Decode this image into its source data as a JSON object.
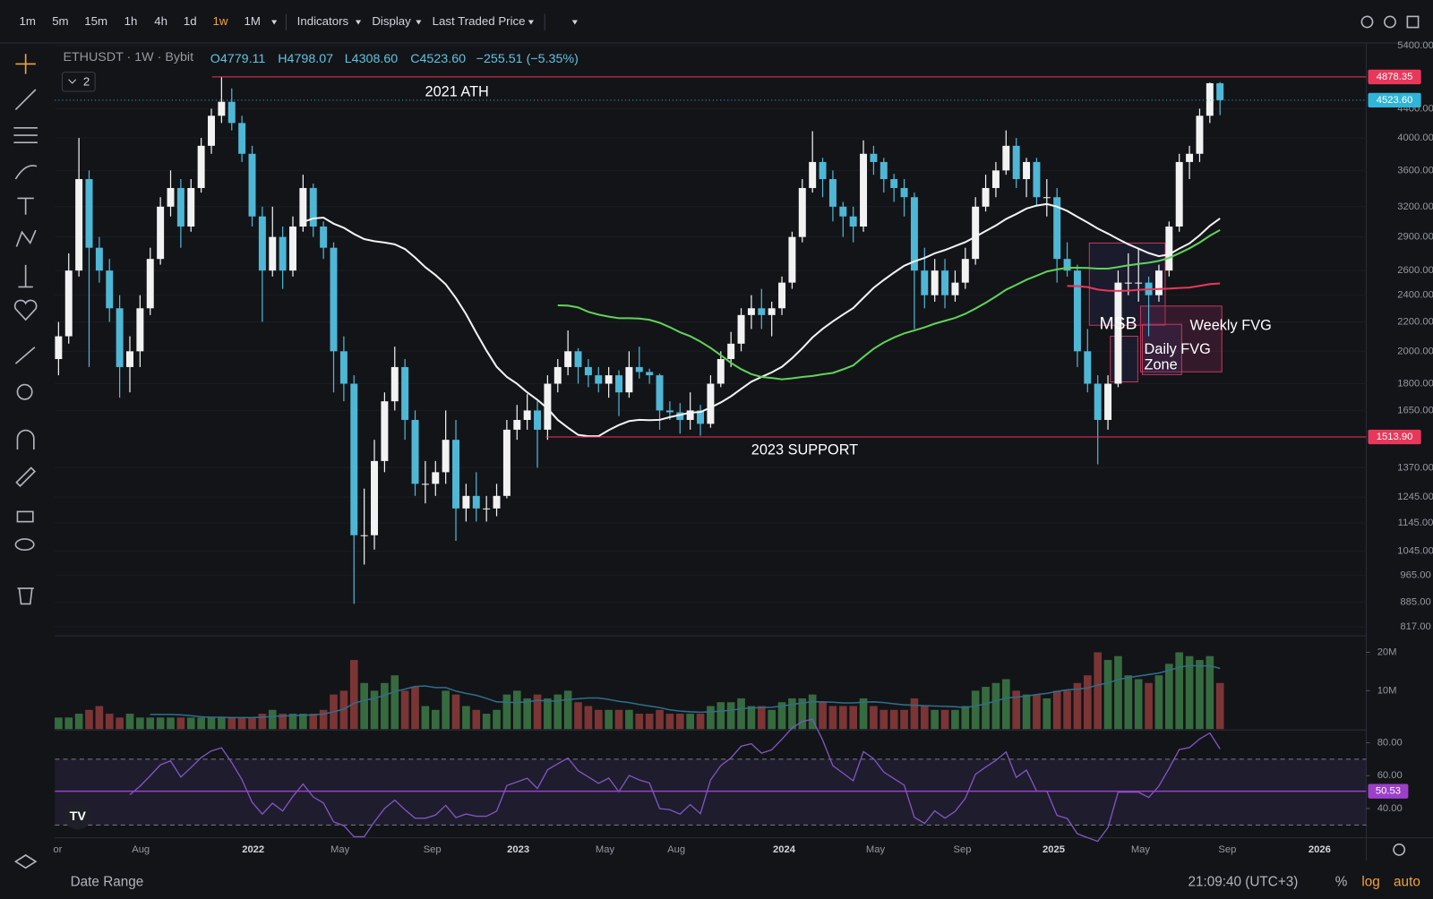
{
  "toolbar": {
    "timeframes": [
      "1m",
      "5m",
      "15m",
      "1h",
      "4h",
      "1d",
      "1w",
      "1M"
    ],
    "menus": [
      "Indicators",
      "Display",
      "Last Traded Price"
    ]
  },
  "header": {
    "symbol": "ETHUSDT · 1W · Bybit",
    "open": "O4779.11",
    "high": "H4798.07",
    "low": "L4308.60",
    "close": "C4523.60",
    "change": "−255.51 (−5.35%)",
    "badge": "2"
  },
  "footer": {
    "date_range": "Date Range",
    "clock": "21:09:40 (UTC+3)",
    "percent": "%",
    "log": "log",
    "auto": "auto"
  },
  "chart_data": {
    "type": "candlestick",
    "log": true,
    "up_color": "#f2f2f2",
    "down_color": "#4fb7d6",
    "ylim": [
      797.8,
      5464.5
    ],
    "yticks": [
      {
        "value": 5400,
        "label": "5400.00"
      },
      {
        "value": 4400,
        "label": "4400.00"
      },
      {
        "value": 4000,
        "label": "4000.00"
      },
      {
        "value": 3600,
        "label": "3600.00"
      },
      {
        "value": 3200,
        "label": "3200.00"
      },
      {
        "value": 2900,
        "label": "2900.00"
      },
      {
        "value": 2600,
        "label": "2600.00"
      },
      {
        "value": 2400,
        "label": "2400.00"
      },
      {
        "value": 2200,
        "label": "2200.00"
      },
      {
        "value": 2000,
        "label": "2000.00"
      },
      {
        "value": 1800,
        "label": "1800.00"
      },
      {
        "value": 1650,
        "label": "1650.00"
      },
      {
        "value": 1370,
        "label": "1370.00"
      },
      {
        "value": 1245,
        "label": "1245.00"
      },
      {
        "value": 1145,
        "label": "1145.00"
      },
      {
        "value": 1045,
        "label": "1045.00"
      },
      {
        "value": 965,
        "label": "965.00"
      },
      {
        "value": 885,
        "label": "885.00"
      },
      {
        "value": 817,
        "label": "817.00"
      }
    ],
    "xlabels": [
      "or",
      "Aug",
      "2022",
      "May",
      "Sep",
      "2023",
      "May",
      "Aug",
      "2024",
      "May",
      "Sep",
      "2025",
      "May",
      "Sep",
      "2026"
    ],
    "price_lines": [
      {
        "value": 4878.35,
        "color": "#e8385a"
      },
      {
        "value": 4523.6,
        "label": "4523.60",
        "color": "#2fb5d8"
      },
      {
        "value": 1513.9,
        "label": "1513.90",
        "color": "#e8385a"
      }
    ],
    "annotations": [
      "2021 ATH",
      "2023 SUPPORT",
      "MSB",
      "Weekly FVG",
      "Daily FVG",
      "Zone"
    ],
    "candles": [
      [
        1950,
        2200,
        1850,
        2100
      ],
      [
        2100,
        2750,
        2050,
        2600
      ],
      [
        2600,
        4000,
        2550,
        3500
      ],
      [
        3500,
        3600,
        1900,
        2800
      ],
      [
        2800,
        2900,
        2500,
        2600
      ],
      [
        2600,
        2700,
        2200,
        2300
      ],
      [
        2300,
        2400,
        1720,
        1900
      ],
      [
        1900,
        2100,
        1750,
        2000
      ],
      [
        2000,
        2400,
        1900,
        2300
      ],
      [
        2300,
        2800,
        2250,
        2700
      ],
      [
        2700,
        3300,
        2650,
        3200
      ],
      [
        3200,
        3600,
        3100,
        3400
      ],
      [
        3400,
        3500,
        2800,
        3000
      ],
      [
        3000,
        3500,
        2950,
        3400
      ],
      [
        3400,
        4000,
        3350,
        3900
      ],
      [
        3900,
        4400,
        3800,
        4300
      ],
      [
        4300,
        4878,
        4200,
        4500
      ],
      [
        4500,
        4700,
        4100,
        4200
      ],
      [
        4200,
        4300,
        3700,
        3800
      ],
      [
        3800,
        3900,
        3000,
        3100
      ],
      [
        3100,
        3200,
        2200,
        2600
      ],
      [
        2600,
        3200,
        2550,
        2900
      ],
      [
        2900,
        3000,
        2450,
        2600
      ],
      [
        2600,
        3100,
        2550,
        3000
      ],
      [
        3000,
        3550,
        2950,
        3400
      ],
      [
        3400,
        3450,
        2900,
        3000
      ],
      [
        3000,
        3050,
        2700,
        2800
      ],
      [
        2800,
        2850,
        1750,
        2000
      ],
      [
        2000,
        2100,
        1700,
        1800
      ],
      [
        1800,
        1850,
        880,
        1100
      ],
      [
        1100,
        1280,
        1000,
        1100
      ],
      [
        1100,
        1500,
        1050,
        1400
      ],
      [
        1400,
        1750,
        1350,
        1700
      ],
      [
        1700,
        2030,
        1650,
        1900
      ],
      [
        1900,
        1950,
        1500,
        1600
      ],
      [
        1600,
        1650,
        1250,
        1300
      ],
      [
        1300,
        1400,
        1220,
        1300
      ],
      [
        1300,
        1400,
        1250,
        1350
      ],
      [
        1350,
        1650,
        1300,
        1500
      ],
      [
        1500,
        1600,
        1080,
        1200
      ],
      [
        1200,
        1300,
        1150,
        1250
      ],
      [
        1250,
        1350,
        1150,
        1200
      ],
      [
        1200,
        1250,
        1150,
        1200
      ],
      [
        1200,
        1300,
        1170,
        1250
      ],
      [
        1250,
        1600,
        1240,
        1550
      ],
      [
        1550,
        1680,
        1500,
        1600
      ],
      [
        1600,
        1740,
        1550,
        1650
      ],
      [
        1650,
        1700,
        1370,
        1550
      ],
      [
        1550,
        1850,
        1500,
        1800
      ],
      [
        1800,
        1950,
        1750,
        1900
      ],
      [
        1900,
        2140,
        1850,
        2000
      ],
      [
        2000,
        2020,
        1800,
        1900
      ],
      [
        1900,
        1950,
        1780,
        1850
      ],
      [
        1850,
        1900,
        1750,
        1800
      ],
      [
        1800,
        1900,
        1720,
        1850
      ],
      [
        1850,
        1880,
        1620,
        1750
      ],
      [
        1750,
        2000,
        1720,
        1900
      ],
      [
        1900,
        2030,
        1830,
        1870
      ],
      [
        1870,
        1890,
        1800,
        1850
      ],
      [
        1850,
        1860,
        1550,
        1650
      ],
      [
        1650,
        1700,
        1600,
        1640
      ],
      [
        1640,
        1690,
        1530,
        1600
      ],
      [
        1600,
        1750,
        1550,
        1650
      ],
      [
        1650,
        1680,
        1520,
        1580
      ],
      [
        1580,
        1850,
        1560,
        1800
      ],
      [
        1800,
        2000,
        1780,
        1950
      ],
      [
        1950,
        2130,
        1900,
        2050
      ],
      [
        2050,
        2300,
        2000,
        2250
      ],
      [
        2250,
        2400,
        2150,
        2300
      ],
      [
        2300,
        2450,
        2150,
        2250
      ],
      [
        2250,
        2350,
        2100,
        2300
      ],
      [
        2300,
        2550,
        2250,
        2500
      ],
      [
        2500,
        2950,
        2450,
        2900
      ],
      [
        2900,
        3500,
        2850,
        3400
      ],
      [
        3400,
        4090,
        3350,
        3700
      ],
      [
        3700,
        3750,
        3300,
        3500
      ],
      [
        3500,
        3600,
        3050,
        3200
      ],
      [
        3200,
        3250,
        2900,
        3100
      ],
      [
        3100,
        3200,
        2850,
        3000
      ],
      [
        3000,
        3970,
        2950,
        3800
      ],
      [
        3800,
        3900,
        3550,
        3700
      ],
      [
        3700,
        3750,
        3350,
        3500
      ],
      [
        3500,
        3560,
        3250,
        3400
      ],
      [
        3400,
        3500,
        3100,
        3300
      ],
      [
        3300,
        3350,
        2150,
        2600
      ],
      [
        2600,
        2800,
        2300,
        2400
      ],
      [
        2400,
        2700,
        2350,
        2600
      ],
      [
        2600,
        2700,
        2300,
        2400
      ],
      [
        2400,
        2600,
        2350,
        2500
      ],
      [
        2500,
        2800,
        2450,
        2700
      ],
      [
        2700,
        3300,
        2650,
        3200
      ],
      [
        3200,
        3550,
        3150,
        3400
      ],
      [
        3400,
        3700,
        3300,
        3600
      ],
      [
        3600,
        4100,
        3550,
        3900
      ],
      [
        3900,
        4000,
        3400,
        3500
      ],
      [
        3500,
        3750,
        3300,
        3700
      ],
      [
        3700,
        3750,
        3200,
        3300
      ],
      [
        3300,
        3500,
        3100,
        3300
      ],
      [
        3300,
        3400,
        2500,
        2700
      ],
      [
        2700,
        2850,
        2550,
        2600
      ],
      [
        2600,
        2650,
        1900,
        2000
      ],
      [
        2000,
        2150,
        1750,
        1800
      ],
      [
        1800,
        1850,
        1385,
        1600
      ],
      [
        1600,
        1850,
        1550,
        1800
      ],
      [
        1800,
        2600,
        1780,
        2500
      ],
      [
        2500,
        2750,
        2400,
        2500
      ],
      [
        2500,
        2800,
        2350,
        2500
      ],
      [
        2500,
        2550,
        2100,
        2400
      ],
      [
        2400,
        2650,
        2350,
        2600
      ],
      [
        2600,
        3050,
        2550,
        3000
      ],
      [
        3000,
        3800,
        2950,
        3700
      ],
      [
        3700,
        3900,
        3500,
        3800
      ],
      [
        3800,
        4400,
        3700,
        4300
      ],
      [
        4300,
        4790,
        4200,
        4780
      ],
      [
        4779.11,
        4798.07,
        4308.6,
        4523.6
      ]
    ],
    "volume": {
      "up_color": "#3d7a47",
      "down_color": "#8e3b3b",
      "ylim": [
        0,
        23.8
      ],
      "yticks": [
        {
          "value": 20,
          "label": "20M"
        },
        {
          "value": 10,
          "label": "10M"
        }
      ],
      "values": [
        3,
        3,
        4,
        5,
        6,
        4,
        3,
        4,
        3,
        3,
        3,
        3,
        3,
        3,
        3,
        3,
        3,
        3,
        3,
        3,
        4,
        5,
        4,
        4,
        4,
        4,
        5,
        9,
        10,
        18,
        12,
        10,
        12,
        14,
        10,
        11,
        6,
        5,
        10,
        9,
        6,
        5,
        4,
        5,
        9,
        10,
        8,
        9,
        8,
        9,
        10,
        7,
        6,
        5,
        5,
        5,
        5,
        4,
        4,
        5,
        4,
        4,
        4,
        4,
        6,
        7,
        7,
        8,
        6,
        6,
        5,
        7,
        8,
        8,
        9,
        7,
        6,
        6,
        6,
        8,
        6,
        5,
        5,
        5,
        8,
        6,
        5,
        5,
        5,
        6,
        10,
        11,
        12,
        13,
        10,
        9,
        9,
        8,
        10,
        10,
        12,
        14,
        20,
        18,
        19,
        14,
        13,
        12,
        14,
        17,
        20,
        19,
        18,
        19,
        12
      ]
    },
    "rsi": {
      "ylim": [
        22.8,
        87.2
      ],
      "yticks": [
        {
          "value": 80,
          "label": "80.00"
        },
        {
          "value": 60,
          "label": "60.00"
        },
        {
          "value": 40,
          "label": "40.00"
        }
      ],
      "ma_value": {
        "value": 50.53,
        "label": "50.53"
      }
    }
  }
}
